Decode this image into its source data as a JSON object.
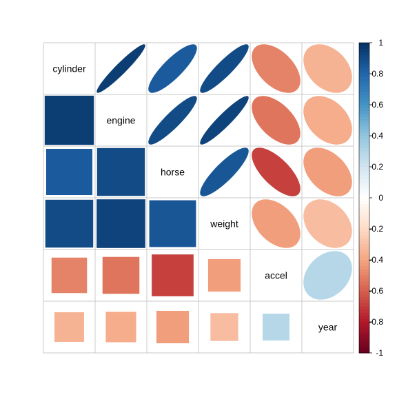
{
  "chart_data": {
    "type": "heatmap",
    "variables": [
      "cylinder",
      "engine",
      "horse",
      "weight",
      "accel",
      "year"
    ],
    "correlations": [
      [
        1.0,
        0.95,
        0.84,
        0.9,
        -0.5,
        -0.35
      ],
      [
        0.95,
        1.0,
        0.9,
        0.93,
        -0.54,
        -0.37
      ],
      [
        0.84,
        0.9,
        1.0,
        0.86,
        -0.69,
        -0.42
      ],
      [
        0.9,
        0.93,
        0.86,
        1.0,
        -0.42,
        -0.31
      ],
      [
        -0.5,
        -0.54,
        -0.69,
        -0.42,
        1.0,
        0.29
      ],
      [
        -0.35,
        -0.37,
        -0.42,
        -0.31,
        0.29,
        1.0
      ]
    ],
    "upper_method": "ellipse",
    "lower_method": "square",
    "diagonal": "labels",
    "colorbar": {
      "range": [
        -1,
        1
      ],
      "ticks": [
        1,
        0.8,
        0.6,
        0.4,
        0.2,
        0,
        -0.2,
        -0.4,
        -0.6,
        -0.8,
        -1
      ],
      "tick_labels": [
        "1",
        "0.8",
        "0.6",
        "0.4",
        "0.2",
        "0",
        "-0.2",
        "-0.4",
        "-0.6",
        "-0.8",
        "-1"
      ],
      "placement": "right",
      "colors": [
        "#67001F",
        "#B2182B",
        "#D6604D",
        "#F4A582",
        "#FDDBC7",
        "#FFFFFF",
        "#D1E5F0",
        "#92C5DE",
        "#4393C3",
        "#2166AC",
        "#053061"
      ]
    },
    "grid": true
  }
}
